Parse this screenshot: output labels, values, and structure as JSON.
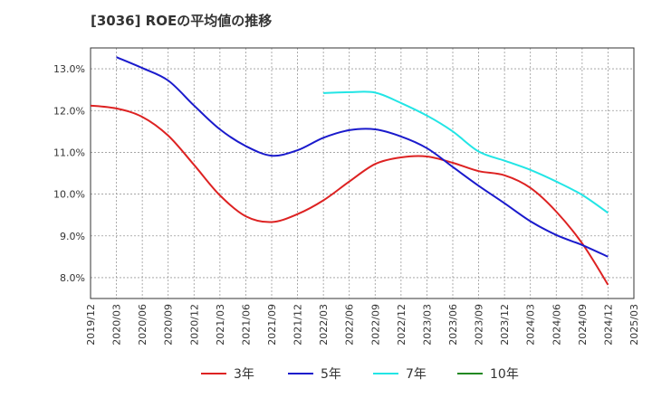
{
  "title": "[3036]  ROEの平均値の推移",
  "chart_data": {
    "type": "line",
    "title": "[3036]  ROEの平均値の推移",
    "xlabel": "",
    "ylabel": "",
    "ylim": [
      7.5,
      13.5
    ],
    "yticks": [
      "8.0%",
      "9.0%",
      "10.0%",
      "11.0%",
      "12.0%",
      "13.0%"
    ],
    "ytick_values": [
      8.0,
      9.0,
      10.0,
      11.0,
      12.0,
      13.0
    ],
    "xticks": [
      "2019/12",
      "2020/03",
      "2020/06",
      "2020/09",
      "2020/12",
      "2021/03",
      "2021/06",
      "2021/09",
      "2021/12",
      "2022/03",
      "2022/06",
      "2022/09",
      "2022/12",
      "2023/03",
      "2023/06",
      "2023/09",
      "2023/12",
      "2024/03",
      "2024/06",
      "2024/09",
      "2024/12",
      "2025/03"
    ],
    "grid": true,
    "legend_position": "bottom",
    "series": [
      {
        "name": "3年",
        "color": "#dd2222",
        "x": [
          "2019/12",
          "2020/03",
          "2020/06",
          "2020/09",
          "2020/12",
          "2021/03",
          "2021/06",
          "2021/09",
          "2021/12",
          "2022/03",
          "2022/06",
          "2022/09",
          "2022/12",
          "2023/03",
          "2023/06",
          "2023/09",
          "2023/12",
          "2024/03",
          "2024/06",
          "2024/09",
          "2024/12"
        ],
        "values": [
          12.12,
          12.05,
          11.85,
          11.4,
          10.7,
          9.97,
          9.47,
          9.33,
          9.52,
          9.85,
          10.3,
          10.72,
          10.88,
          10.9,
          10.75,
          10.55,
          10.45,
          10.15,
          9.58,
          8.82,
          7.83
        ]
      },
      {
        "name": "5年",
        "color": "#1a1acc",
        "x": [
          "2020/03",
          "2020/06",
          "2020/09",
          "2020/12",
          "2021/03",
          "2021/06",
          "2021/09",
          "2021/12",
          "2022/03",
          "2022/06",
          "2022/09",
          "2022/12",
          "2023/03",
          "2023/06",
          "2023/09",
          "2023/12",
          "2024/03",
          "2024/06",
          "2024/09",
          "2024/12"
        ],
        "values": [
          13.28,
          13.02,
          12.72,
          12.12,
          11.55,
          11.15,
          10.92,
          11.05,
          11.35,
          11.53,
          11.55,
          11.38,
          11.1,
          10.65,
          10.2,
          9.78,
          9.35,
          9.02,
          8.78,
          8.5
        ]
      },
      {
        "name": "7年",
        "color": "#22e5e5",
        "x": [
          "2022/03",
          "2022/06",
          "2022/09",
          "2022/12",
          "2023/03",
          "2023/06",
          "2023/09",
          "2023/12",
          "2024/03",
          "2024/06",
          "2024/09",
          "2024/12"
        ],
        "values": [
          12.42,
          12.44,
          12.43,
          12.18,
          11.88,
          11.5,
          11.02,
          10.8,
          10.58,
          10.3,
          9.98,
          9.55
        ]
      },
      {
        "name": "10年",
        "color": "#228822",
        "x": [],
        "values": []
      }
    ]
  }
}
